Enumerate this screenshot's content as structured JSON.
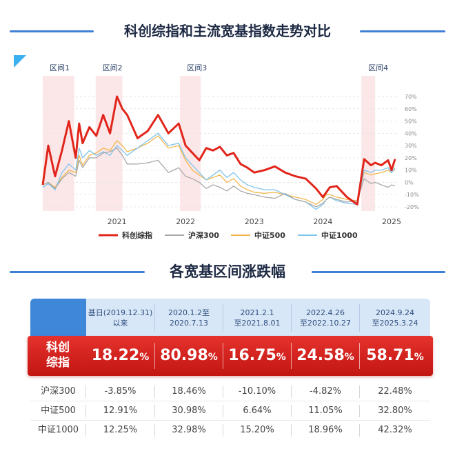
{
  "title": "科创综指和主流宽基指数走势对比",
  "section_title": "各宽基区间涨跌幅",
  "chart_data": {
    "type": "line",
    "title": "科创综指和主流宽基指数走势对比",
    "x_ticks": [
      "2021",
      "2022",
      "2023",
      "2024",
      "2025"
    ],
    "y_ticks": [
      "70%",
      "60%",
      "50%",
      "40%",
      "30%",
      "20%",
      "10%",
      "0%",
      "-10%",
      "-20%"
    ],
    "ylim": [
      -20,
      70
    ],
    "period_labels": [
      "区间1",
      "区间2",
      "区间3",
      "区间4"
    ],
    "period_ranges": [
      [
        2019.92,
        2020.38
      ],
      [
        2020.69,
        2021.08
      ],
      [
        2021.92,
        2022.22
      ],
      [
        2024.56,
        2024.76
      ]
    ],
    "legend": [
      "科创综指",
      "沪深300",
      "中证500",
      "中证1000"
    ],
    "x": [
      2019.92,
      2020.0,
      2020.1,
      2020.2,
      2020.3,
      2020.4,
      2020.45,
      2020.5,
      2020.6,
      2020.7,
      2020.8,
      2020.9,
      2021.0,
      2021.08,
      2021.15,
      2021.3,
      2021.45,
      2021.6,
      2021.75,
      2021.9,
      2022.0,
      2022.1,
      2022.2,
      2022.3,
      2022.4,
      2022.5,
      2022.6,
      2022.7,
      2022.8,
      2022.9,
      2023.0,
      2023.15,
      2023.3,
      2023.45,
      2023.6,
      2023.75,
      2023.9,
      2024.0,
      2024.05,
      2024.1,
      2024.2,
      2024.35,
      2024.5,
      2024.6,
      2024.7,
      2024.76,
      2024.85,
      2024.95,
      2025.0,
      2025.05
    ],
    "series": [
      {
        "name": "科创综指",
        "color": "#e1251b",
        "values": [
          -2,
          30,
          5,
          26,
          50,
          20,
          48,
          32,
          45,
          38,
          55,
          40,
          70,
          60,
          55,
          36,
          42,
          55,
          40,
          48,
          30,
          24,
          18,
          28,
          26,
          29,
          22,
          24,
          15,
          12,
          8,
          10,
          13,
          8,
          5,
          3,
          -5,
          -12,
          -8,
          -4,
          -3,
          -12,
          -18,
          19,
          14,
          16,
          14,
          18,
          10,
          19
        ]
      },
      {
        "name": "沪深300",
        "color": "#a9a9a9",
        "values": [
          -2,
          0,
          -5,
          3,
          8,
          5,
          18,
          12,
          20,
          20,
          24,
          25,
          28,
          22,
          15,
          15,
          16,
          18,
          8,
          12,
          5,
          3,
          0,
          -5,
          -2,
          -4,
          -7,
          -3,
          -7,
          -9,
          -10,
          -12,
          -13,
          -9,
          -14,
          -16,
          -20,
          -17,
          -14,
          -12,
          -14,
          -16,
          -15,
          3,
          -1,
          0,
          -2,
          -4,
          -2,
          -3
        ]
      },
      {
        "name": "中证500",
        "color": "#f0b64b",
        "values": [
          -2,
          0,
          -4,
          4,
          10,
          8,
          22,
          14,
          22,
          24,
          28,
          26,
          34,
          30,
          25,
          28,
          32,
          38,
          28,
          30,
          18,
          10,
          6,
          2,
          4,
          6,
          0,
          3,
          -3,
          -6,
          -8,
          -9,
          -8,
          -10,
          -12,
          -14,
          -18,
          -14,
          -10,
          -10,
          -12,
          -14,
          -15,
          8,
          6,
          7,
          8,
          10,
          8,
          11
        ]
      },
      {
        "name": "中证1000",
        "color": "#7ec3ea",
        "values": [
          -4,
          -1,
          -6,
          8,
          15,
          10,
          28,
          20,
          26,
          22,
          25,
          22,
          30,
          26,
          22,
          28,
          34,
          40,
          30,
          32,
          20,
          14,
          8,
          2,
          6,
          10,
          4,
          8,
          2,
          -2,
          -4,
          -6,
          -6,
          -10,
          -14,
          -16,
          -22,
          -18,
          -14,
          -12,
          -15,
          -17,
          -18,
          10,
          8,
          10,
          10,
          12,
          8,
          12
        ]
      }
    ]
  },
  "table": {
    "headers": [
      {
        "line1": "基日(2019.12.31)",
        "line2": "以来"
      },
      {
        "line1": "2020.1.2至",
        "line2": "2020.7.13"
      },
      {
        "line1": "2021.2.1",
        "line2": "至2021.8.01"
      },
      {
        "line1": "2022.4.26",
        "line2": "至2022.10.27"
      },
      {
        "line1": "2024.9.24",
        "line2": "至2025.3.24"
      }
    ],
    "highlight": {
      "name_line1": "科创",
      "name_line2": "综指",
      "values": [
        "18.22",
        "80.98",
        "16.75",
        "24.58",
        "58.71"
      ],
      "unit": "%"
    },
    "rows": [
      {
        "name": "沪深300",
        "values": [
          "-3.85%",
          "18.46%",
          "-10.10%",
          "-4.82%",
          "22.48%"
        ]
      },
      {
        "name": "中证500",
        "values": [
          "12.91%",
          "30.98%",
          "6.64%",
          "11.05%",
          "32.80%"
        ]
      },
      {
        "name": "中证1000",
        "values": [
          "12.25%",
          "32.98%",
          "15.20%",
          "18.96%",
          "42.32%"
        ]
      }
    ]
  }
}
